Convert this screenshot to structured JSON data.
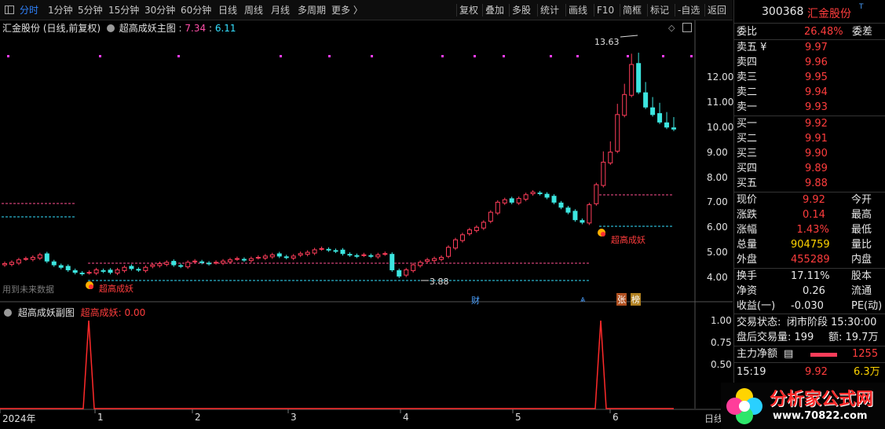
{
  "toolbar": {
    "left": [
      "分时",
      "1分钟",
      "5分钟",
      "15分钟",
      "30分钟",
      "60分钟",
      "日线",
      "周线",
      "月线",
      "多周期",
      "更多 〉"
    ],
    "right": [
      "复权",
      "叠加",
      "多股",
      "统计",
      "画线",
      "F10",
      "简框",
      "标记",
      "-自选",
      "返回"
    ]
  },
  "chart": {
    "stock_name": "汇金股份",
    "period_label": "(日线,前复权)",
    "indicator_name": "超高成妖主图",
    "value1": "7.34",
    "value2": "6.11",
    "y_ticks": [
      "12.00",
      "11.00",
      "10.00",
      "9.00",
      "8.00",
      "7.00",
      "6.00",
      "5.00",
      "4.00"
    ],
    "high_label": "13.63",
    "low_label": "3.88",
    "signal_label": "超高成妖",
    "future_note": "用到未来数据",
    "markers": {
      "cai": "财",
      "zhang": "张",
      "bang": "榜"
    },
    "sub_title": "超高成妖副图",
    "sub_value": "超高成妖: 0.00",
    "sub_ticks": [
      "1.00",
      "0.75",
      "0.50"
    ],
    "x_labels": [
      "2024年",
      "1",
      "2",
      "3",
      "4",
      "5",
      "6"
    ],
    "x_corner": "日线"
  },
  "panel": {
    "code": "300368",
    "name": "汇金股份",
    "weibi_label": "委比",
    "weibi_value": "26.48%",
    "weicha_label": "委差",
    "asks": [
      {
        "label": "卖五 ¥",
        "price": "9.97"
      },
      {
        "label": "卖四",
        "price": "9.96"
      },
      {
        "label": "卖三",
        "price": "9.95"
      },
      {
        "label": "卖二",
        "price": "9.94"
      },
      {
        "label": "卖一",
        "price": "9.93"
      }
    ],
    "bids": [
      {
        "label": "买一",
        "price": "9.92"
      },
      {
        "label": "买二",
        "price": "9.91"
      },
      {
        "label": "买三",
        "price": "9.90"
      },
      {
        "label": "买四",
        "price": "9.89"
      },
      {
        "label": "买五",
        "price": "9.88"
      }
    ],
    "stats1": [
      {
        "l": "现价",
        "v": "9.92",
        "r": "今开",
        "c": "red"
      },
      {
        "l": "涨跌",
        "v": "0.14",
        "r": "最高",
        "c": "red"
      },
      {
        "l": "涨幅",
        "v": "1.43%",
        "r": "最低",
        "c": "red"
      },
      {
        "l": "总量",
        "v": "904759",
        "r": "量比",
        "c": "yel"
      },
      {
        "l": "外盘",
        "v": "455289",
        "r": "内盘",
        "c": "red"
      }
    ],
    "stats2": [
      {
        "l": "换手",
        "v": "17.11%",
        "r": "股本"
      },
      {
        "l": "净资",
        "v": "0.26",
        "r": "流通"
      },
      {
        "l": "收益(一)",
        "v": "-0.030",
        "r": "PE(动)"
      }
    ],
    "trade_status_label": "交易状态:",
    "trade_status": "闭市阶段",
    "trade_time": "15:30:00",
    "after_hours": "盘后交易量: 199",
    "after_amount": "额: 19.7万",
    "main_flow_label": "主力净额",
    "main_flow_value": "1255",
    "tick_time": "15:19",
    "tick_price": "9.92",
    "tick_vol": "6.3万"
  },
  "watermark": {
    "title": "分析家公式网",
    "url": "www.70822.com"
  },
  "chart_data": {
    "type": "candlestick",
    "x_labels": [
      "2024年",
      "1",
      "2",
      "3",
      "4",
      "5",
      "6"
    ],
    "ylim": [
      3.6,
      13.9
    ],
    "series": [
      {
        "name": "price",
        "values": [
          4.55,
          4.6,
          4.7,
          4.75,
          4.8,
          4.9,
          4.65,
          4.5,
          4.4,
          4.3,
          4.2,
          4.15,
          4.2,
          4.3,
          4.25,
          4.2,
          4.3,
          4.4,
          4.35,
          4.3,
          4.4,
          4.5,
          4.55,
          4.6,
          4.5,
          4.45,
          4.6,
          4.65,
          4.6,
          4.55,
          4.6,
          4.65,
          4.7,
          4.75,
          4.7,
          4.75,
          4.8,
          4.85,
          4.9,
          4.85,
          4.8,
          4.85,
          4.95,
          5.0,
          5.1,
          5.15,
          5.1,
          5.05,
          4.95,
          4.9,
          4.85,
          4.9,
          4.85,
          4.9,
          4.95,
          4.3,
          4.05,
          4.3,
          4.5,
          4.6,
          4.7,
          4.75,
          4.8,
          5.2,
          5.5,
          5.7,
          5.9,
          6.0,
          6.2,
          6.6,
          7.0,
          7.1,
          7.0,
          7.15,
          7.3,
          7.4,
          7.35,
          7.2,
          7.0,
          6.8,
          6.6,
          6.3,
          6.2,
          6.9,
          7.7,
          8.6,
          9.0,
          10.5,
          11.3,
          12.5,
          11.4,
          10.8,
          10.5,
          10.2,
          10.0,
          9.92
        ]
      }
    ]
  }
}
